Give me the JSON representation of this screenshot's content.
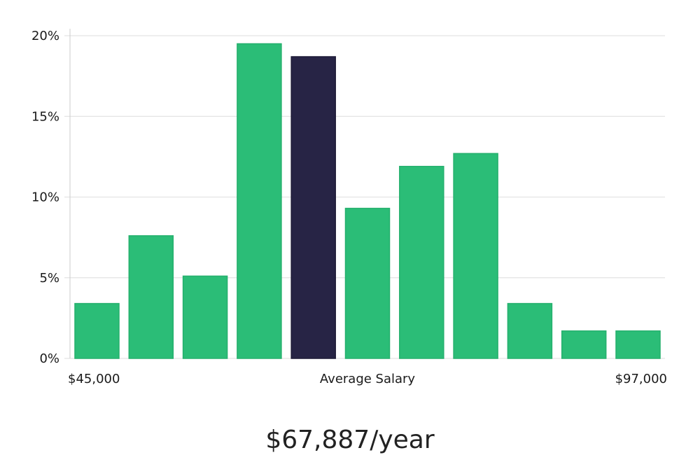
{
  "chart_data": {
    "type": "bar",
    "bin_values": [
      3.4,
      7.6,
      5.1,
      19.5,
      18.7,
      9.3,
      11.9,
      12.7,
      3.4,
      1.7,
      1.7
    ],
    "highlight_index": 4,
    "ylim": [
      0,
      20
    ],
    "yticks": [
      "0%",
      "5%",
      "10%",
      "15%",
      "20%"
    ],
    "ytick_values": [
      0,
      5,
      10,
      15,
      20
    ],
    "x_min_label": "$45,000",
    "x_center_label": "Average Salary",
    "x_max_label": "$97,000",
    "grid": true,
    "colors": {
      "bar": "#2bbd77",
      "highlight": "#272445",
      "grid": "#e3e3e3",
      "axis": "#cccccc"
    }
  },
  "summary": {
    "salary": "$67,887/year"
  }
}
